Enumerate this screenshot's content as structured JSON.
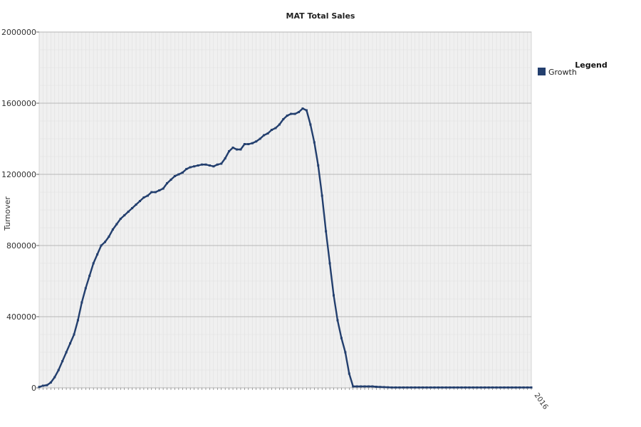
{
  "chart_data": {
    "type": "area",
    "title": "MAT Total Sales",
    "xlabel": "",
    "ylabel": "Turnover",
    "ylim": [
      0,
      2000000
    ],
    "yticks": [
      "0",
      "400000",
      "800000",
      "1200000",
      "1600000",
      "2000000"
    ],
    "yticks_values": [
      0,
      400000,
      800000,
      1200000,
      1600000,
      2000000
    ],
    "grid": true,
    "legend": {
      "title": "Legend",
      "position": "right",
      "entries": [
        {
          "label": "Growth",
          "color": "#233f6e"
        }
      ]
    },
    "series": [
      {
        "name": "Growth",
        "color": "#233f6e",
        "values": [
          5000,
          12000,
          15000,
          30000,
          60000,
          100000,
          150000,
          200000,
          250000,
          300000,
          380000,
          480000,
          560000,
          630000,
          700000,
          750000,
          800000,
          820000,
          850000,
          890000,
          920000,
          950000,
          970000,
          990000,
          1010000,
          1030000,
          1050000,
          1070000,
          1080000,
          1100000,
          1100000,
          1110000,
          1120000,
          1150000,
          1170000,
          1190000,
          1200000,
          1210000,
          1230000,
          1240000,
          1245000,
          1250000,
          1255000,
          1255000,
          1250000,
          1245000,
          1255000,
          1260000,
          1290000,
          1330000,
          1350000,
          1340000,
          1340000,
          1370000,
          1370000,
          1375000,
          1385000,
          1400000,
          1420000,
          1430000,
          1450000,
          1460000,
          1480000,
          1510000,
          1530000,
          1540000,
          1540000,
          1550000,
          1570000,
          1560000,
          1480000,
          1380000,
          1250000,
          1080000,
          880000,
          700000,
          520000,
          380000,
          280000,
          200000,
          80000,
          8000,
          8000,
          8000,
          8000,
          8000,
          8000,
          6000,
          5000,
          4000,
          3000,
          2000,
          2000,
          2000,
          2000,
          2000,
          2000,
          2000,
          2000,
          2000,
          2000,
          2000,
          2000,
          2000,
          2000,
          2000,
          2000,
          2000,
          2000,
          2000,
          2000,
          2000,
          2000,
          2000,
          2000,
          2000,
          2000,
          2000,
          2000,
          2000,
          2000,
          2000,
          2000,
          2000,
          2000,
          2000,
          2000,
          2000
        ]
      }
    ],
    "categories_note": "x tick labels are heavily overlapped and illegible in the original",
    "x_last_tick": "2016"
  }
}
